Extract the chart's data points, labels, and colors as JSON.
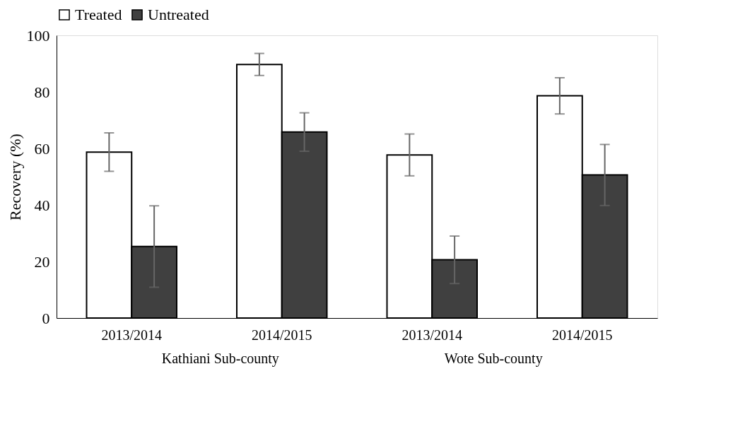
{
  "chart_data": {
    "type": "bar",
    "ylabel": "Recovery (%)",
    "categories": [
      "2013/2014",
      "2014/2015",
      "2013/2014",
      "2014/2015"
    ],
    "annotations": [
      "Kathiani Sub-county",
      "Wote Sub-county"
    ],
    "series": [
      {
        "name": "Treated",
        "color": "#ffffff",
        "values": [
          58.7,
          89.7,
          57.7,
          78.6
        ],
        "errors": [
          6.8,
          3.9,
          7.4,
          6.4
        ]
      },
      {
        "name": "Untreated",
        "color": "#404040",
        "values": [
          25.3,
          65.8,
          20.6,
          50.6
        ],
        "errors": [
          14.4,
          6.8,
          8.4,
          10.8
        ]
      }
    ],
    "ylim": [
      0,
      100
    ],
    "yticks": [
      0,
      20,
      40,
      60,
      80,
      100
    ],
    "grid": false,
    "legend": "top"
  }
}
